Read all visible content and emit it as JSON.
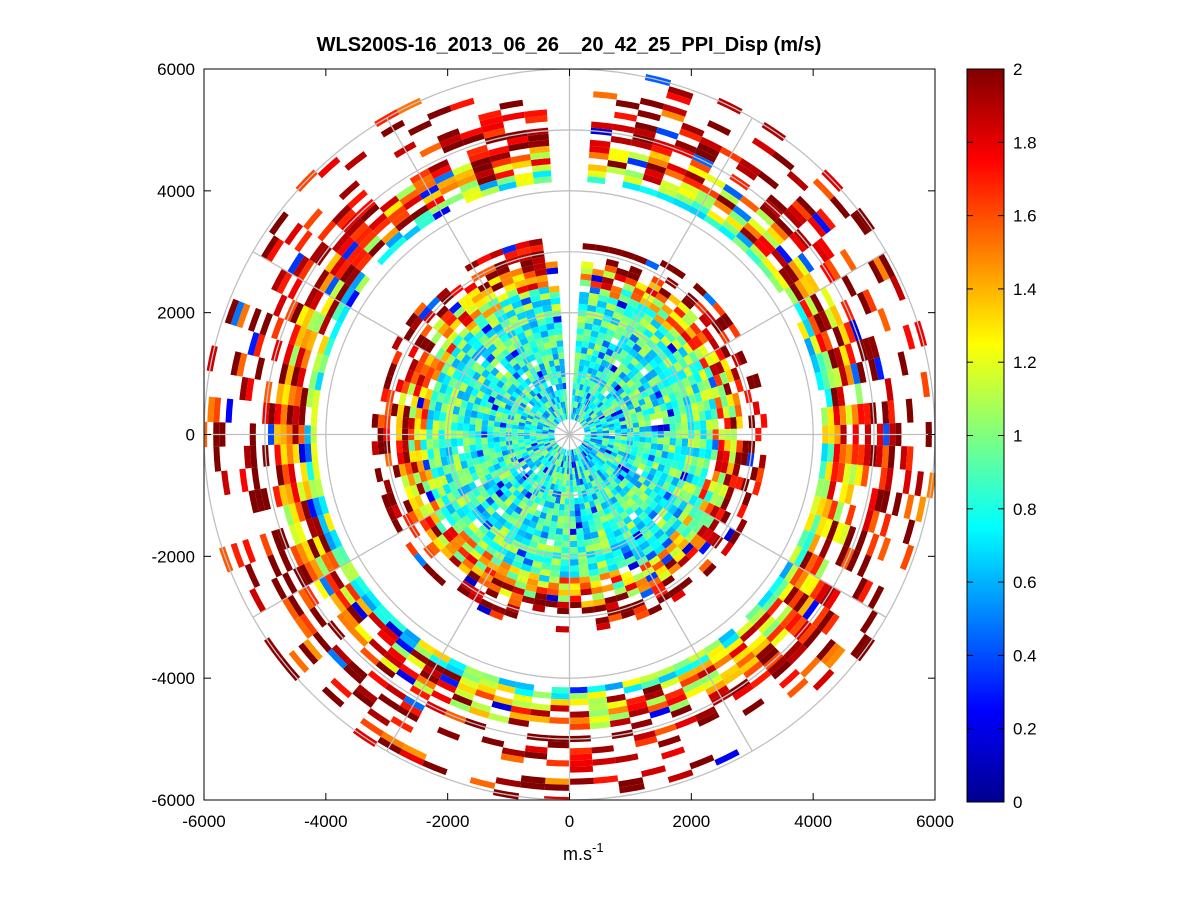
{
  "chart_data": {
    "type": "heatmap",
    "subtype": "polar-ppi-scan",
    "title": "WLS200S-16_2013_06_26__20_42_25_PPI_Disp (m/s)",
    "xlabel": "m.s-1",
    "xlabel_base": "m.s",
    "xlabel_exponent": "-1",
    "ylabel": "",
    "xlim": [
      -6000,
      6000
    ],
    "ylim": [
      -6000,
      6000
    ],
    "xticks": [
      -6000,
      -4000,
      -2000,
      0,
      2000,
      4000,
      6000
    ],
    "yticks": [
      6000,
      4000,
      2000,
      0,
      -2000,
      -4000,
      -6000
    ],
    "xtick_labels": [
      "-6000",
      "-4000",
      "-2000",
      "0",
      "2000",
      "4000",
      "6000"
    ],
    "ytick_labels": [
      "6000",
      "4000",
      "2000",
      "0",
      "-2000",
      "-4000",
      "-6000"
    ],
    "polar_grid": {
      "range_rings_m": [
        1000,
        2000,
        3000,
        4000,
        5000,
        6000
      ],
      "spoke_angles_deg": [
        0,
        30,
        60,
        90,
        120,
        150,
        180,
        210,
        240,
        270,
        300,
        330
      ]
    },
    "colorbar": {
      "colormap": "jet",
      "clim": [
        0,
        2
      ],
      "ticks": [
        0,
        0.2,
        0.4,
        0.6,
        0.8,
        1,
        1.2,
        1.4,
        1.6,
        1.8,
        2
      ],
      "tick_labels": [
        "0",
        "0.2",
        "0.4",
        "0.6",
        "0.8",
        "1",
        "1.2",
        "1.4",
        "1.6",
        "1.8",
        "2"
      ]
    },
    "scan": {
      "range_gates_m": [
        300,
        400,
        500,
        600,
        700,
        800,
        900,
        1000,
        1100,
        1200,
        1300,
        1400,
        1500,
        1600,
        1700,
        1800,
        1900,
        2000,
        2100,
        2200,
        2300,
        2400,
        2500,
        2600,
        2700,
        2800,
        2900,
        3000,
        3100,
        3200,
        4200,
        4300,
        4400,
        4500,
        4600,
        4700,
        4800,
        4900,
        5000,
        5100,
        5200,
        5300,
        5400,
        5500,
        5600,
        5700,
        5800,
        5900,
        6000
      ],
      "azimuth_step_deg": 4,
      "blind_sector_deg": [
        358,
        2
      ]
    }
  }
}
